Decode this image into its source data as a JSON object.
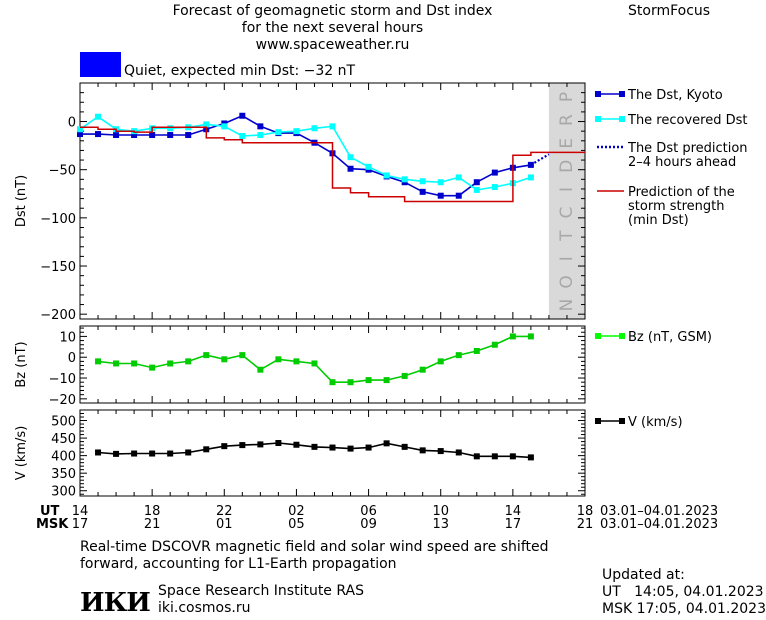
{
  "header": {
    "title_line1": "Forecast of geomagnetic storm and Dst index",
    "title_line2": "for the next several hours",
    "site": "www.spaceweather.ru",
    "brand": "StormFocus",
    "status_text": "Quiet, expected min Dst: −32 nT",
    "status_color": "#0000ff"
  },
  "footer": {
    "note_line1": "Real-time DSCOVR magnetic field and solar wind speed are shifted",
    "note_line2": "forward, accounting for L1-Earth propagation",
    "logo_text": "ИКИ",
    "institute": "Space Research Institute RAS",
    "institute_url": "iki.cosmos.ru",
    "updated_label": "Updated at:",
    "updated_ut": "UT   14:05, 04.01.2023",
    "updated_msk": "MSK 17:05, 04.01.2023"
  },
  "chart_data": [
    {
      "type": "line",
      "panel": "dst",
      "ylabel": "Dst (nT)",
      "ylim": [
        -205,
        40
      ],
      "yticks": [
        0,
        -50,
        -100,
        -150,
        -200
      ],
      "xlim": [
        0,
        28
      ],
      "prediction_band": {
        "label": "PREDICTION",
        "x_range": [
          26,
          28
        ],
        "color": "#d9d9d9"
      },
      "series": [
        {
          "name": "The Dst, Kyoto",
          "color": "#0000cc",
          "marker": "square",
          "x": [
            0,
            1,
            2,
            3,
            4,
            5,
            6,
            7,
            8,
            9,
            10,
            11,
            12,
            13,
            14,
            15,
            16,
            17,
            18,
            19,
            20,
            21,
            22,
            23,
            24,
            25
          ],
          "y": [
            -13,
            -13,
            -14,
            -14,
            -14,
            -14,
            -14,
            -8,
            -2,
            6,
            -5,
            -12,
            -12,
            -22,
            -33,
            -49,
            -50,
            -57,
            -63,
            -73,
            -77,
            -77,
            -63,
            -53,
            -48,
            -45
          ]
        },
        {
          "name": "The recovered Dst",
          "color": "#00ffff",
          "marker": "square",
          "x": [
            0,
            1,
            2,
            3,
            4,
            5,
            6,
            7,
            8,
            9,
            10,
            11,
            12,
            13,
            14,
            15,
            16,
            17,
            18,
            19,
            20,
            21,
            22,
            23,
            24,
            25
          ],
          "y": [
            -8,
            5,
            -8,
            -10,
            -7,
            -7,
            -6,
            -3,
            -5,
            -15,
            -14,
            -11,
            -10,
            -7,
            -5,
            -37,
            -47,
            -56,
            -60,
            -62,
            -63,
            -58,
            -71,
            -68,
            -64,
            -58
          ]
        },
        {
          "name": "The Dst prediction 2–4 hours ahead",
          "color": "#0000cc",
          "dotted": true,
          "x": [
            25,
            26
          ],
          "y": [
            -45,
            -34
          ]
        },
        {
          "name": "Prediction of the storm strength (min Dst)",
          "color": "#cc0000",
          "step": true,
          "x": [
            0,
            1,
            2,
            3,
            4,
            5,
            6,
            7,
            8,
            9,
            10,
            11,
            12,
            13,
            14,
            15,
            16,
            17,
            18,
            19,
            20,
            21,
            22,
            23,
            24,
            25,
            26,
            27,
            28
          ],
          "y": [
            -6,
            -8,
            -10,
            -11,
            -6,
            -6,
            -6,
            -17,
            -19,
            -22,
            -22,
            -22,
            -22,
            -22,
            -69,
            -74,
            -78,
            -78,
            -83,
            -83,
            -83,
            -83,
            -83,
            -83,
            -35,
            -32,
            -32,
            -32,
            -32
          ]
        }
      ],
      "legend": {
        "placement": "right",
        "entries": [
          {
            "lines": [
              "The Dst, Kyoto"
            ],
            "color": "#0000cc",
            "style": "marker"
          },
          {
            "lines": [
              "The recovered Dst"
            ],
            "color": "#00ffff",
            "style": "marker"
          },
          {
            "lines": [
              "The Dst prediction",
              "2–4 hours ahead"
            ],
            "color": "#0000cc",
            "style": "dotted"
          },
          {
            "lines": [
              "Prediction of the",
              "storm strength",
              "(min Dst)"
            ],
            "color": "#cc0000",
            "style": "line"
          }
        ]
      }
    },
    {
      "type": "line",
      "panel": "bz",
      "ylabel": "Bz (nT)",
      "ylim": [
        -22,
        15
      ],
      "yticks": [
        10,
        0,
        -10,
        -20
      ],
      "xlim": [
        0,
        28
      ],
      "series": [
        {
          "name": "Bz (nT, GSM)",
          "color": "#00cc00",
          "marker": "square",
          "x": [
            1,
            2,
            3,
            4,
            5,
            6,
            7,
            8,
            9,
            10,
            11,
            12,
            13,
            14,
            15,
            16,
            17,
            18,
            19,
            20,
            21,
            22,
            23,
            24,
            25
          ],
          "y": [
            -2,
            -3,
            -3,
            -5,
            -3,
            -2,
            1,
            -1,
            1,
            -6,
            -1,
            -2,
            -3,
            -12,
            -12,
            -11,
            -11,
            -9,
            -6,
            -2,
            1,
            3,
            6,
            10,
            10
          ]
        }
      ],
      "legend": {
        "placement": "right",
        "entries": [
          {
            "lines": [
              "Bz (nT, GSM)"
            ],
            "color": "#00ff00",
            "style": "marker"
          }
        ]
      }
    },
    {
      "type": "line",
      "panel": "v",
      "ylabel": "V (km/s)",
      "ylim": [
        285,
        530
      ],
      "yticks": [
        500,
        450,
        400,
        350,
        300
      ],
      "xlim": [
        0,
        28
      ],
      "series": [
        {
          "name": "V (km/s)",
          "color": "#000000",
          "marker": "square",
          "x": [
            1,
            2,
            3,
            4,
            5,
            6,
            7,
            8,
            9,
            10,
            11,
            12,
            13,
            14,
            15,
            16,
            17,
            18,
            19,
            20,
            21,
            22,
            23,
            24,
            25
          ],
          "y": [
            409,
            405,
            406,
            406,
            406,
            409,
            418,
            427,
            430,
            432,
            436,
            431,
            425,
            423,
            420,
            423,
            435,
            425,
            415,
            413,
            409,
            398,
            398,
            398,
            395
          ]
        }
      ],
      "legend": {
        "placement": "right",
        "entries": [
          {
            "lines": [
              "V (km/s)"
            ],
            "color": "#000000",
            "style": "marker"
          }
        ]
      }
    }
  ],
  "x_axis": {
    "ut_label": "UT",
    "msk_label": "MSK",
    "tick_positions": [
      0,
      4,
      8,
      12,
      16,
      20,
      24,
      28
    ],
    "ut_ticks": [
      "14",
      "18",
      "22",
      "02",
      "06",
      "10",
      "14",
      "18"
    ],
    "msk_ticks": [
      "17",
      "21",
      "01",
      "05",
      "09",
      "13",
      "17",
      "21"
    ],
    "ut_range": "03.01–04.01.2023",
    "msk_range": "03.01–04.01.2023"
  }
}
